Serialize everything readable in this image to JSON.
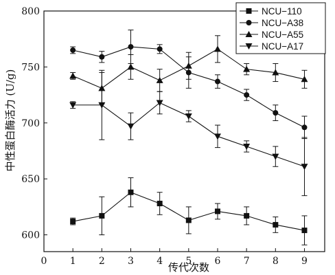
{
  "chart_data": {
    "type": "line",
    "title": "",
    "xlabel": "传代次数",
    "ylabel": "中性蛋白酶活力 (U/g)",
    "xlim": [
      0,
      9.7
    ],
    "ylim": [
      585,
      800
    ],
    "x_ticks": [
      0,
      1,
      2,
      3,
      4,
      5,
      6,
      7,
      8,
      9
    ],
    "y_ticks": [
      600,
      650,
      700,
      750,
      800
    ],
    "x": [
      1,
      2,
      3,
      4,
      5,
      6,
      7,
      8,
      9
    ],
    "legend_position": "top-right",
    "grid": false,
    "series": [
      {
        "name": "NCU−110",
        "marker": "square",
        "color": "#111111",
        "values": [
          612,
          617,
          638,
          628,
          613,
          621,
          617,
          609,
          604
        ],
        "errors": [
          3,
          17,
          13,
          10,
          12,
          7,
          8,
          7,
          13
        ]
      },
      {
        "name": "NCU−A38",
        "marker": "circle",
        "color": "#111111",
        "values": [
          765,
          759,
          768,
          766,
          745,
          737,
          725,
          709,
          696
        ],
        "errors": [
          3,
          5,
          15,
          4,
          14,
          6,
          5,
          7,
          10
        ]
      },
      {
        "name": "NCU−A55",
        "marker": "triangle-up",
        "color": "#111111",
        "values": [
          742,
          731,
          750,
          738,
          751,
          766,
          748,
          745,
          739
        ],
        "errors": [
          3,
          14,
          11,
          10,
          12,
          12,
          5,
          8,
          8
        ]
      },
      {
        "name": "NCU−A17",
        "marker": "triangle-down",
        "color": "#111111",
        "values": [
          716,
          716,
          697,
          718,
          706,
          688,
          679,
          670,
          661
        ],
        "errors": [
          3,
          31,
          12,
          10,
          5,
          10,
          5,
          9,
          26
        ]
      }
    ]
  }
}
